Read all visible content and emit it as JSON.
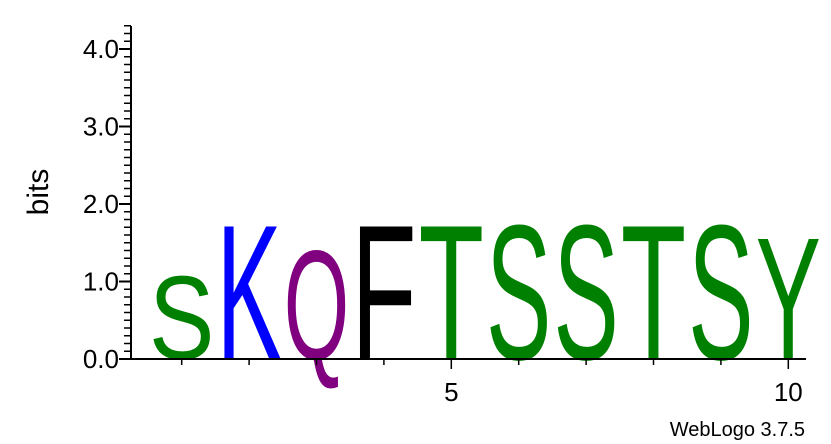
{
  "chart_data": {
    "type": "sequence-logo",
    "ylabel": "bits",
    "ylim": [
      0,
      4.3
    ],
    "yticks": [
      "0.0",
      "1.0",
      "2.0",
      "3.0",
      "4.0"
    ],
    "xticks": [
      {
        "position": 5,
        "label": "5"
      },
      {
        "position": 10,
        "label": "10"
      }
    ],
    "positions": [
      {
        "position": 1,
        "letter": "S",
        "bits": 1.1,
        "color": "#008000"
      },
      {
        "position": 2,
        "letter": "K",
        "bits": 1.79,
        "color": "#0000ff"
      },
      {
        "position": 3,
        "letter": "Q",
        "bits": 1.45,
        "color": "#800080"
      },
      {
        "position": 4,
        "letter": "F",
        "bits": 1.79,
        "color": "#000000"
      },
      {
        "position": 5,
        "letter": "T",
        "bits": 1.79,
        "color": "#008000"
      },
      {
        "position": 6,
        "letter": "S",
        "bits": 1.79,
        "color": "#008000"
      },
      {
        "position": 7,
        "letter": "S",
        "bits": 1.79,
        "color": "#008000"
      },
      {
        "position": 8,
        "letter": "T",
        "bits": 1.79,
        "color": "#008000"
      },
      {
        "position": 9,
        "letter": "S",
        "bits": 1.79,
        "color": "#008000"
      },
      {
        "position": 10,
        "letter": "Y",
        "bits": 1.62,
        "color": "#008000"
      }
    ],
    "credit": "WebLogo 3.7.5"
  }
}
